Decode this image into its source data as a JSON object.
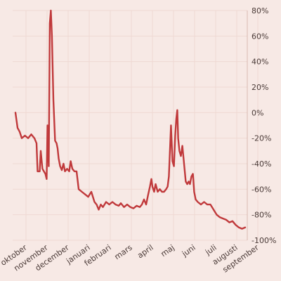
{
  "chart_data": {
    "type": "line",
    "title": "",
    "xlabel": "",
    "ylabel": "",
    "ylim": [
      -100,
      80
    ],
    "y_ticks": [
      80,
      60,
      40,
      20,
      0,
      -20,
      -40,
      -60,
      -80,
      -100
    ],
    "y_tick_labels": [
      "80%",
      "60%",
      "40%",
      "20%",
      "0%",
      "-20%",
      "-40%",
      "-60%",
      "-80%",
      "-100%"
    ],
    "y_axis_position": "right",
    "grid": true,
    "x_categories": [
      "oktober",
      "november",
      "december",
      "januari",
      "februari",
      "mars",
      "april",
      "maj",
      "juni",
      "juli",
      "augusti",
      "september"
    ],
    "series_color": "#c0393b",
    "series": [
      {
        "values": [
          [
            0,
            0
          ],
          [
            0.1,
            -12
          ],
          [
            0.2,
            -15
          ],
          [
            0.3,
            -20
          ],
          [
            0.45,
            -18
          ],
          [
            0.6,
            -20
          ],
          [
            0.75,
            -17
          ],
          [
            0.9,
            -20
          ],
          [
            1.0,
            -24
          ],
          [
            1.05,
            -46
          ],
          [
            1.15,
            -46
          ],
          [
            1.2,
            -30
          ],
          [
            1.28,
            -44
          ],
          [
            1.35,
            -46
          ],
          [
            1.42,
            -48
          ],
          [
            1.48,
            -52
          ],
          [
            1.52,
            -10
          ],
          [
            1.58,
            -42
          ],
          [
            1.63,
            70
          ],
          [
            1.68,
            82
          ],
          [
            1.73,
            60
          ],
          [
            1.8,
            10
          ],
          [
            1.88,
            -22
          ],
          [
            1.95,
            -24
          ],
          [
            2.0,
            -28
          ],
          [
            2.05,
            -36
          ],
          [
            2.12,
            -42
          ],
          [
            2.2,
            -45
          ],
          [
            2.28,
            -40
          ],
          [
            2.35,
            -46
          ],
          [
            2.45,
            -44
          ],
          [
            2.55,
            -46
          ],
          [
            2.62,
            -38
          ],
          [
            2.7,
            -44
          ],
          [
            2.8,
            -46
          ],
          [
            2.9,
            -46
          ],
          [
            3.0,
            -60
          ],
          [
            3.15,
            -62
          ],
          [
            3.3,
            -64
          ],
          [
            3.45,
            -66
          ],
          [
            3.6,
            -62
          ],
          [
            3.75,
            -70
          ],
          [
            3.85,
            -72
          ],
          [
            3.95,
            -76
          ],
          [
            4.05,
            -72
          ],
          [
            4.15,
            -74
          ],
          [
            4.3,
            -70
          ],
          [
            4.45,
            -72
          ],
          [
            4.6,
            -70
          ],
          [
            4.75,
            -72
          ],
          [
            4.9,
            -73
          ],
          [
            5.0,
            -71
          ],
          [
            5.15,
            -74
          ],
          [
            5.3,
            -72
          ],
          [
            5.45,
            -74
          ],
          [
            5.6,
            -75
          ],
          [
            5.75,
            -73
          ],
          [
            5.9,
            -74
          ],
          [
            6.0,
            -72
          ],
          [
            6.1,
            -68
          ],
          [
            6.2,
            -72
          ],
          [
            6.3,
            -64
          ],
          [
            6.38,
            -58
          ],
          [
            6.45,
            -52
          ],
          [
            6.5,
            -58
          ],
          [
            6.58,
            -62
          ],
          [
            6.65,
            -56
          ],
          [
            6.75,
            -62
          ],
          [
            6.85,
            -60
          ],
          [
            6.95,
            -62
          ],
          [
            7.05,
            -62
          ],
          [
            7.15,
            -60
          ],
          [
            7.22,
            -58
          ],
          [
            7.28,
            -50
          ],
          [
            7.33,
            -30
          ],
          [
            7.38,
            -10
          ],
          [
            7.45,
            -38
          ],
          [
            7.52,
            -42
          ],
          [
            7.58,
            -18
          ],
          [
            7.63,
            -5
          ],
          [
            7.68,
            2
          ],
          [
            7.72,
            -20
          ],
          [
            7.78,
            -30
          ],
          [
            7.85,
            -34
          ],
          [
            7.92,
            -26
          ],
          [
            8.0,
            -40
          ],
          [
            8.08,
            -54
          ],
          [
            8.15,
            -56
          ],
          [
            8.22,
            -54
          ],
          [
            8.28,
            -56
          ],
          [
            8.35,
            -50
          ],
          [
            8.42,
            -48
          ],
          [
            8.48,
            -62
          ],
          [
            8.55,
            -68
          ],
          [
            8.65,
            -70
          ],
          [
            8.8,
            -72
          ],
          [
            8.95,
            -70
          ],
          [
            9.1,
            -72
          ],
          [
            9.25,
            -72
          ],
          [
            9.4,
            -76
          ],
          [
            9.55,
            -80
          ],
          [
            9.7,
            -82
          ],
          [
            9.85,
            -83
          ],
          [
            10.0,
            -84
          ],
          [
            10.15,
            -86
          ],
          [
            10.3,
            -85
          ],
          [
            10.45,
            -88
          ],
          [
            10.6,
            -90
          ],
          [
            10.75,
            -91
          ],
          [
            10.9,
            -90
          ]
        ]
      }
    ]
  }
}
